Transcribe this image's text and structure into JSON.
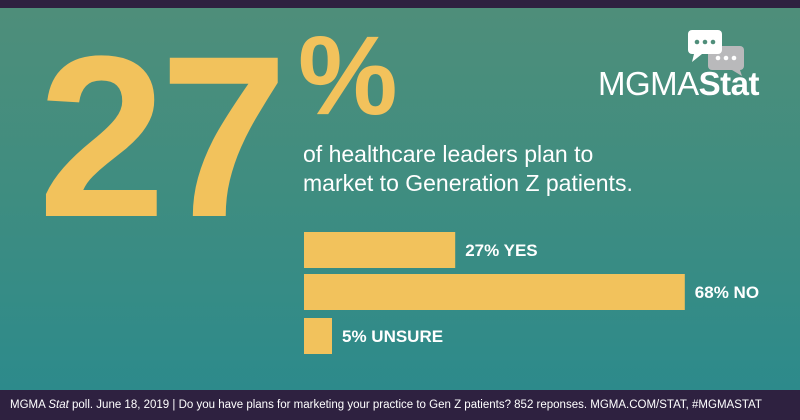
{
  "headline": {
    "big_number": "27",
    "percent_sign": "%",
    "line1": "of healthcare leaders plan to",
    "line2": "market to Generation Z patients."
  },
  "logo": {
    "part1": "MGMA",
    "part2": "Stat"
  },
  "chart_data": {
    "type": "bar",
    "orientation": "horizontal",
    "categories": [
      "YES",
      "NO",
      "UNSURE"
    ],
    "values": [
      27,
      68,
      5
    ],
    "labels": [
      "27% YES",
      "68% NO",
      "5% UNSURE"
    ],
    "unit": "%",
    "xlim": [
      0,
      100
    ],
    "grid": false,
    "legend": "none"
  },
  "footer": {
    "part1": "MGMA ",
    "italic": "Stat",
    "part2": " poll. June 18, 2019 | Do you have plans for marketing your practice to Gen Z patients? 852 reponses. MGMA.COM/STAT, #MGMASTAT"
  },
  "colors": {
    "accent": "#f2c25c",
    "footer_bg": "#2e2140",
    "bubble": "#ffffff",
    "bubble_gray": "#b9b9bb"
  }
}
